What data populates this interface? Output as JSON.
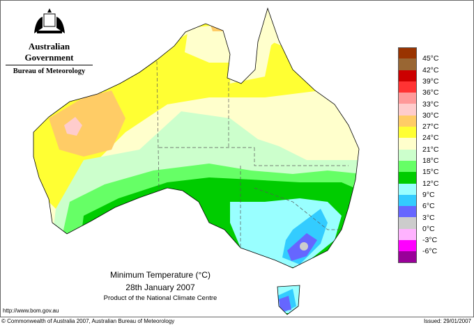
{
  "logo": {
    "line1": "Australian Government",
    "line2": "Bureau of Meteorology"
  },
  "title": {
    "main": "Minimum Temperature (°C)",
    "date": "28th January 2007",
    "product": "Product of the National Climate Centre"
  },
  "url": "http://www.bom.gov.au",
  "copyright": "© Commonwealth of Australia 2007, Australian Bureau of Meteorology",
  "issued": "Issued: 29/01/2007",
  "legend": {
    "colors": [
      "#993300",
      "#996633",
      "#cc0000",
      "#ff3333",
      "#ff9999",
      "#ffcccc",
      "#ffcc66",
      "#ffff33",
      "#ffffcc",
      "#ccffcc",
      "#66ff66",
      "#00cc00",
      "#99ffff",
      "#33ccff",
      "#6666ff",
      "#cccccc",
      "#ffb3ff",
      "#ff00ff",
      "#990099"
    ],
    "labels": [
      "45°C",
      "42°C",
      "39°C",
      "36°C",
      "33°C",
      "30°C",
      "27°C",
      "24°C",
      "21°C",
      "18°C",
      "15°C",
      "12°C",
      "9°C",
      "6°C",
      "3°C",
      "0°C",
      "-3°C",
      "-6°C"
    ]
  }
}
